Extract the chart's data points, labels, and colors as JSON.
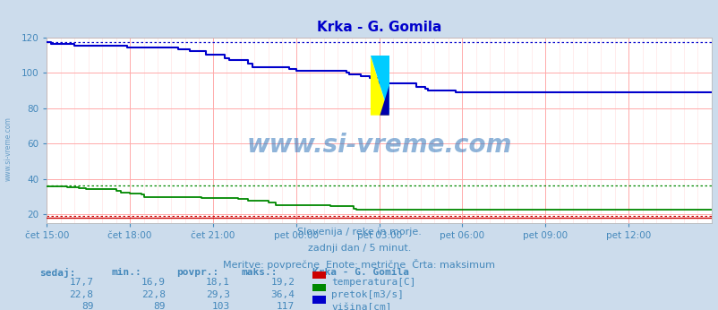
{
  "title": "Krka - G. Gomila",
  "title_color": "#0000cc",
  "bg_color": "#ccdcec",
  "plot_bg_color": "#ffffff",
  "grid_color_major": "#ffaaaa",
  "grid_color_minor": "#ffdddd",
  "text_color": "#4488bb",
  "subtitle_lines": [
    "Slovenija / reke in morje.",
    "zadnji dan / 5 minut.",
    "Meritve: povprečne  Enote: metrične  Črta: maksimum"
  ],
  "x_tick_labels": [
    "čet 15:00",
    "čet 18:00",
    "čet 21:00",
    "pet 00:00",
    "pet 03:00",
    "pet 06:00",
    "pet 09:00",
    "pet 12:00"
  ],
  "x_tick_positions": [
    0,
    36,
    72,
    108,
    144,
    180,
    216,
    252
  ],
  "n_points": 289,
  "ylim": [
    15,
    120
  ],
  "yticks": [
    20,
    40,
    60,
    80,
    100,
    120
  ],
  "temp_color": "#cc0000",
  "pretok_color": "#008800",
  "visina_color": "#0000cc",
  "temp_maks": 19.2,
  "pretok_maks": 36.4,
  "visina_maks": 117,
  "temp_sedaj": "17,7",
  "temp_min": "16,9",
  "temp_povpr": "18,1",
  "temp_maks_str": "19,2",
  "pretok_sedaj": "22,8",
  "pretok_min": "22,8",
  "pretok_povpr": "29,3",
  "pretok_maks_str": "36,4",
  "visina_sedaj": "89",
  "visina_min": "89",
  "visina_povpr": "103",
  "visina_maks_str": "117",
  "watermark": "www.si-vreme.com",
  "watermark_color": "#3377bb",
  "table_header": [
    "sedaj:",
    "min.:",
    "povpr.:",
    "maks.:",
    "Krka - G. Gomila"
  ],
  "legend_labels": [
    "temperatura[C]",
    "pretok[m3/s]",
    "višina[cm]"
  ],
  "legend_colors": [
    "#cc0000",
    "#008800",
    "#0000cc"
  ]
}
